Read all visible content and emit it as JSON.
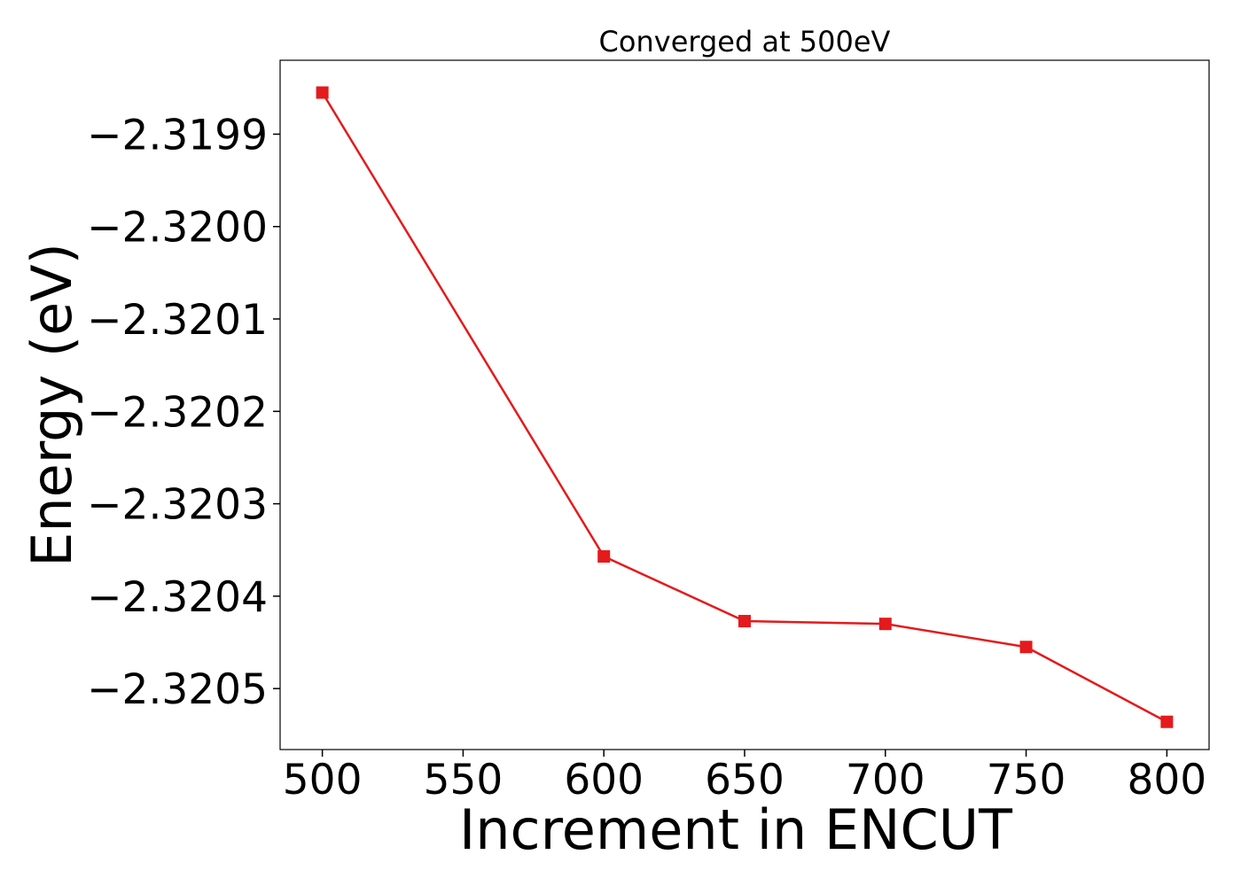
{
  "chart_data": {
    "type": "line",
    "title": "Converged at 500eV",
    "xlabel": "Increment in ENCUT",
    "ylabel": "Energy (eV)",
    "x": [
      500,
      600,
      650,
      700,
      750,
      800
    ],
    "series": [
      {
        "values": [
          -2.319855,
          -2.320357,
          -2.320427,
          -2.32043,
          -2.320455,
          -2.320536
        ],
        "color": "#e41a1c",
        "marker": "square"
      }
    ],
    "xlim": [
      485,
      815
    ],
    "ylim": [
      -2.320566,
      -2.31982
    ],
    "xticks": [
      500,
      550,
      600,
      650,
      700,
      750,
      800
    ],
    "xtick_labels": [
      "500",
      "550",
      "600",
      "650",
      "700",
      "750",
      "800"
    ],
    "yticks": [
      -2.3199,
      -2.32,
      -2.3201,
      -2.3202,
      -2.3203,
      -2.3204,
      -2.3205
    ],
    "ytick_labels": [
      "−2.3199",
      "−2.3200",
      "−2.3201",
      "−2.3202",
      "−2.3203",
      "−2.3204",
      "−2.3205"
    ],
    "grid": false,
    "legend": "none"
  }
}
